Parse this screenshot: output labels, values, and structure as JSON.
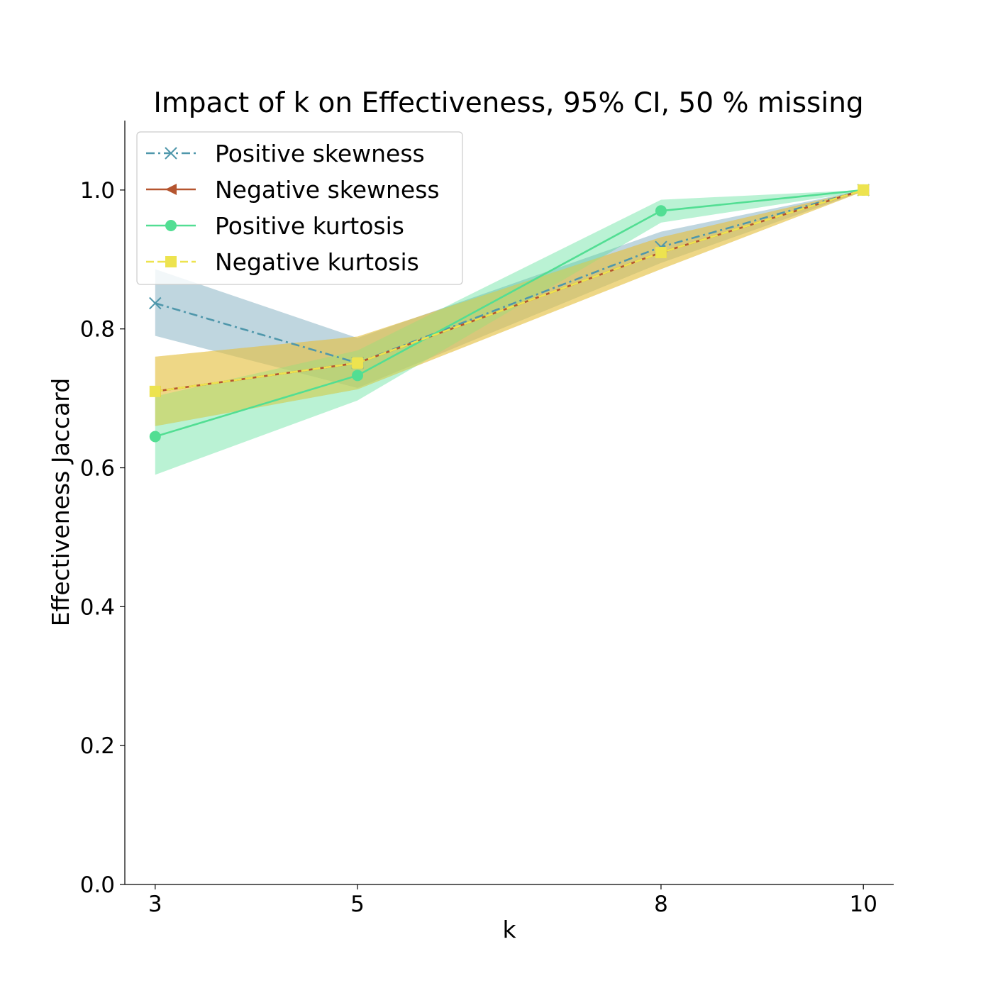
{
  "chart_data": {
    "type": "line",
    "title": "Impact of k on Effectiveness, 95% CI, 50 % missing",
    "xlabel": "k",
    "ylabel": "Effectiveness Jaccard",
    "x": [
      3,
      5,
      8,
      10
    ],
    "xticks": [
      "3",
      "5",
      "8",
      "10"
    ],
    "yticks": [
      "0.0",
      "0.2",
      "0.4",
      "0.6",
      "0.8",
      "1.0"
    ],
    "ylim": [
      0,
      1.1
    ],
    "grid": false,
    "legend_position": "upper-left",
    "series": [
      {
        "name": "Positive skewness",
        "values": [
          0.837,
          0.751,
          0.918,
          1.0
        ],
        "ci_low": [
          0.79,
          0.715,
          0.895,
          0.998
        ],
        "ci_high": [
          0.886,
          0.787,
          0.94,
          1.0
        ],
        "color": "#4f97ab",
        "fill": "#5f98b0",
        "marker": "x",
        "dash": "dashdot"
      },
      {
        "name": "Negative skewness",
        "values": [
          0.71,
          0.751,
          0.91,
          1.0
        ],
        "ci_low": [
          0.66,
          0.713,
          0.886,
          0.998
        ],
        "ci_high": [
          0.76,
          0.789,
          0.932,
          1.0
        ],
        "color": "#b5552f",
        "fill": "#d8862e",
        "marker": "triangle-left",
        "dash": "solid"
      },
      {
        "name": "Positive kurtosis",
        "values": [
          0.645,
          0.733,
          0.97,
          1.0
        ],
        "ci_low": [
          0.59,
          0.697,
          0.953,
          0.998
        ],
        "ci_high": [
          0.703,
          0.769,
          0.986,
          1.0
        ],
        "color": "#52de93",
        "fill": "#52de93",
        "marker": "circle",
        "dash": "solid"
      },
      {
        "name": "Negative kurtosis",
        "values": [
          0.71,
          0.751,
          0.91,
          1.0
        ],
        "ci_low": [
          0.66,
          0.713,
          0.886,
          0.998
        ],
        "ci_high": [
          0.76,
          0.789,
          0.932,
          1.0
        ],
        "color": "#ede34f",
        "fill": "#ede34f",
        "marker": "square",
        "dash": "dashed"
      }
    ]
  }
}
